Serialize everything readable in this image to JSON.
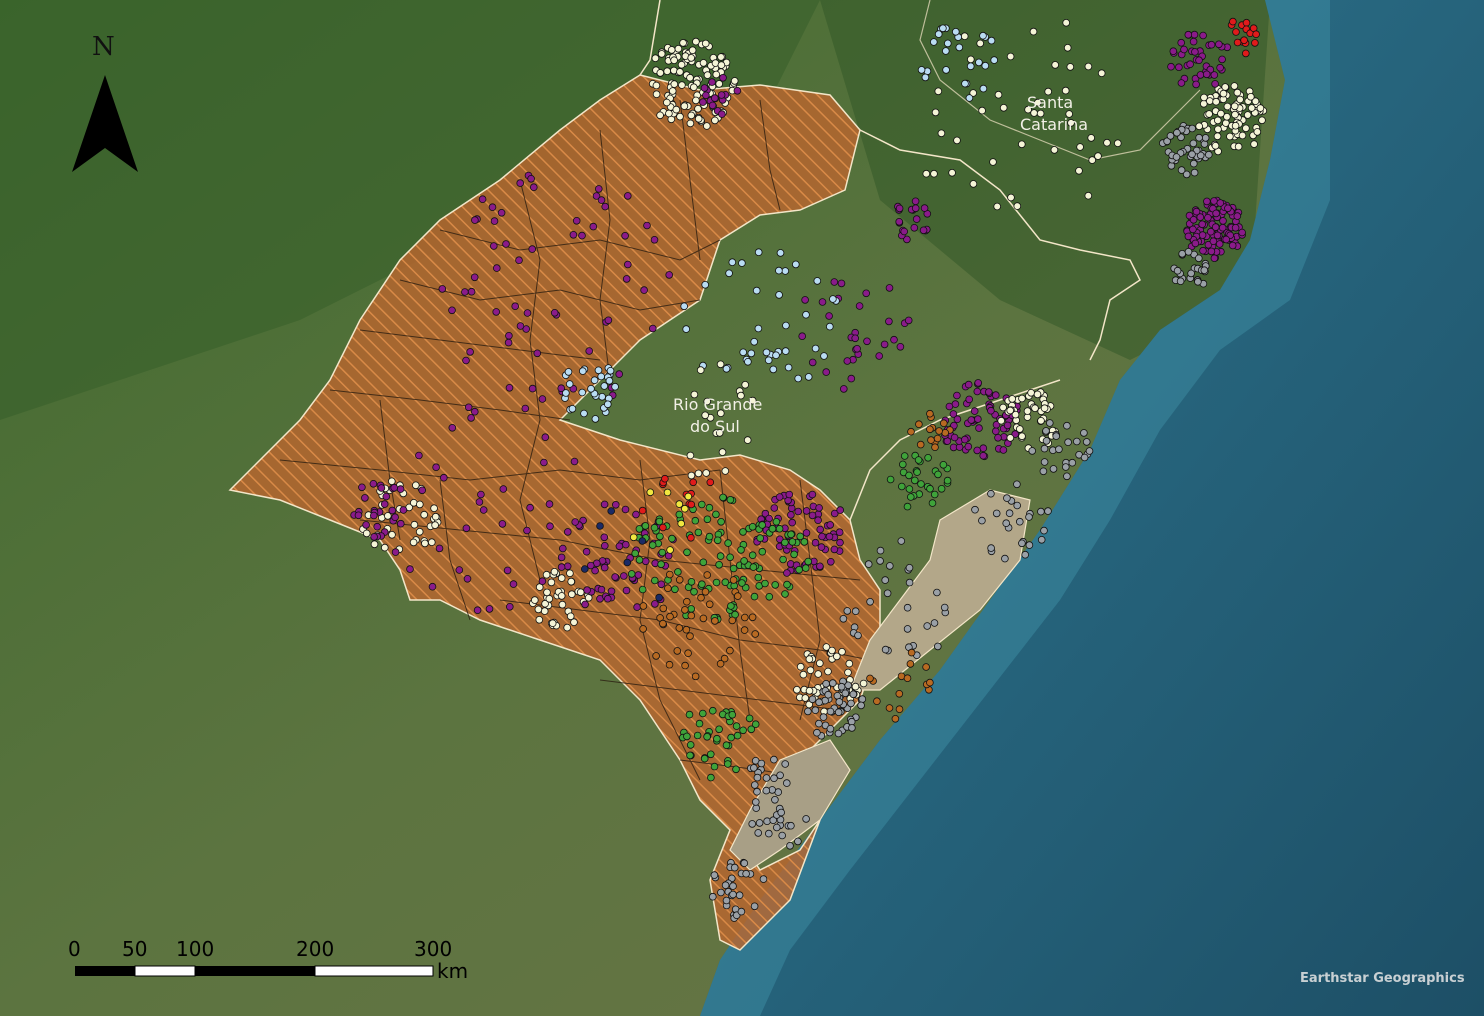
{
  "map": {
    "regions": [
      {
        "name": "Rio Grande do Sul",
        "line1": "Rio Grande",
        "line2": "do Sul"
      },
      {
        "name": "Santa Catarina",
        "line1": "Santa",
        "line2": "Catarina"
      }
    ],
    "attribution": "Earthstar Geographics",
    "north_arrow": {
      "letter": "N"
    },
    "scale_bar": {
      "ticks": [
        "0",
        "50",
        "100",
        "200",
        "300"
      ],
      "unit": "km"
    },
    "colors": {
      "ocean_deep": "#1d4f66",
      "ocean": "#2a6b82",
      "land": "#4a6b35",
      "study_area_fill": "#b8652e",
      "study_area_hatch": "#cf7a3a",
      "boundary": "#f3e6c8",
      "lagoon": "#b3a789",
      "dot_white": "#f4f4d6",
      "dot_purple": "#8a1b8a",
      "dot_lightblue": "#b9dcf2",
      "dot_green": "#3fa33a",
      "dot_orange": "#b86a22",
      "dot_gray": "#9aa0a6",
      "dot_red": "#e01b1b",
      "dot_yellow": "#f1e740",
      "dot_navy": "#1a2a66"
    }
  }
}
